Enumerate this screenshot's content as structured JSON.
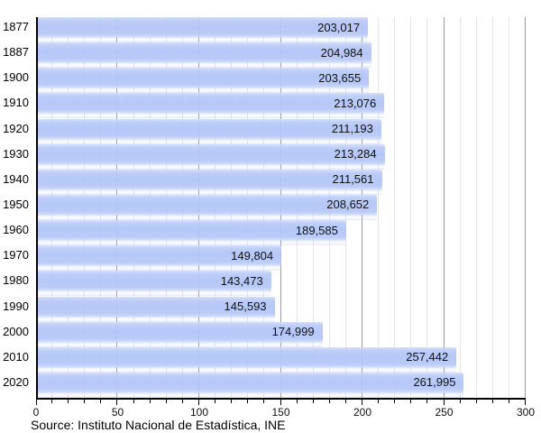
{
  "chart_data": {
    "type": "bar",
    "orientation": "horizontal",
    "title": "",
    "categories": [
      "1877",
      "1887",
      "1900",
      "1910",
      "1920",
      "1930",
      "1940",
      "1950",
      "1960",
      "1970",
      "1980",
      "1990",
      "2000",
      "2010",
      "2020"
    ],
    "values": [
      203017,
      204984,
      203655,
      213076,
      211193,
      213284,
      211561,
      208652,
      189585,
      149804,
      143473,
      145593,
      174999,
      257442,
      261995
    ],
    "value_labels": [
      "203,017",
      "204,984",
      "203,655",
      "213,076",
      "211,193",
      "213,284",
      "211,561",
      "208,652",
      "189,585",
      "149,804",
      "143,473",
      "145,593",
      "174,999",
      "257,442",
      "261,995"
    ],
    "xlim": [
      0,
      300
    ],
    "x_ticks": [
      0,
      50,
      100,
      150,
      200,
      250,
      300
    ],
    "x_tick_labels": [
      "0",
      "50",
      "100",
      "150",
      "200",
      "250",
      "300"
    ],
    "x_minor_step": 10,
    "axis_unit_divisor": 1000,
    "grid": true,
    "legend_position": "none",
    "colors": {
      "bar": "#b3c6f7",
      "bar_highlight": "#d3defb",
      "minor_grid": "#e4e4e4",
      "major_grid": "#999999",
      "axis": "#000000",
      "text": "#000000"
    },
    "source_note": "Source: Instituto Nacional de Estadística, INE"
  }
}
